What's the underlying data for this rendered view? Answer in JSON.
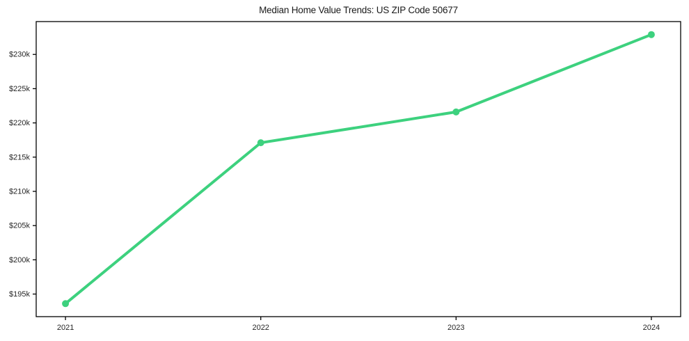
{
  "chart_data": {
    "type": "line",
    "title": "Median Home Value Trends: US ZIP Code 50677",
    "x": [
      2021,
      2022,
      2023,
      2024
    ],
    "x_tick_labels": [
      "2021",
      "2022",
      "2023",
      "2024"
    ],
    "y_axis": {
      "ticks": [
        195000,
        200000,
        205000,
        210000,
        215000,
        220000,
        225000,
        230000
      ],
      "labels": [
        "$195k",
        "$200k",
        "$205k",
        "$210k",
        "$215k",
        "$220k",
        "$225k",
        "$230k"
      ]
    },
    "series": [
      {
        "name": "Median Home Value",
        "values": [
          193600,
          217100,
          221600,
          232900
        ],
        "color": "#3dd17e"
      }
    ],
    "xlim": [
      2020.85,
      2024.15
    ],
    "ylim": [
      191700,
      234800
    ],
    "xlabel": "",
    "ylabel": "",
    "grid": false,
    "legend": null,
    "line_width": 4,
    "marker_radius": 5,
    "frame_color": "#000000",
    "tick_text_color": "#262626",
    "background": "#ffffff"
  }
}
